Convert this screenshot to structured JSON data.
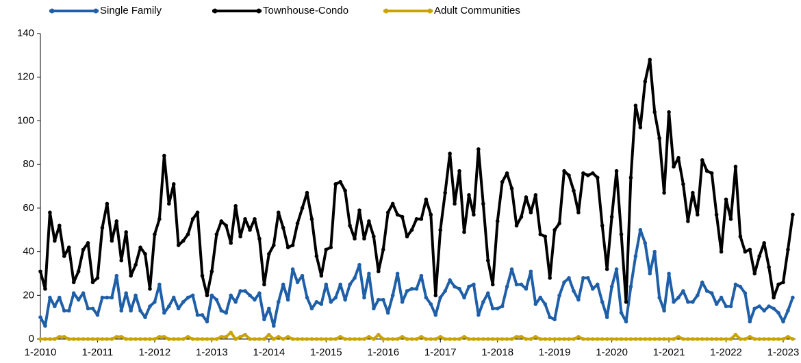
{
  "chart_data": {
    "type": "line",
    "categories": [
      "1-2010",
      null,
      null,
      null,
      null,
      null,
      null,
      null,
      null,
      null,
      null,
      null,
      "1-2011",
      null,
      null,
      null,
      null,
      null,
      null,
      null,
      null,
      null,
      null,
      null,
      "1-2012",
      null,
      null,
      null,
      null,
      null,
      null,
      null,
      null,
      null,
      null,
      null,
      "1-2013",
      null,
      null,
      null,
      null,
      null,
      null,
      null,
      null,
      null,
      null,
      null,
      "1-2014",
      null,
      null,
      null,
      null,
      null,
      null,
      null,
      null,
      null,
      null,
      null,
      "1-2015",
      null,
      null,
      null,
      null,
      null,
      null,
      null,
      null,
      null,
      null,
      null,
      "1-2016",
      null,
      null,
      null,
      null,
      null,
      null,
      null,
      null,
      null,
      null,
      null,
      "1-2017",
      null,
      null,
      null,
      null,
      null,
      null,
      null,
      null,
      null,
      null,
      null,
      "1-2018",
      null,
      null,
      null,
      null,
      null,
      null,
      null,
      null,
      null,
      null,
      null,
      "1-2019",
      null,
      null,
      null,
      null,
      null,
      null,
      null,
      null,
      null,
      null,
      null,
      "1-2020",
      null,
      null,
      null,
      null,
      null,
      null,
      null,
      null,
      null,
      null,
      null,
      "1-2021",
      null,
      null,
      null,
      null,
      null,
      null,
      null,
      null,
      null,
      null,
      null,
      "1-2022",
      null,
      null,
      null,
      null,
      null,
      null,
      null,
      null,
      null,
      null,
      null,
      "1-2023",
      null,
      null
    ],
    "series": [
      {
        "name": "Single Family",
        "color": "#1f5fa8",
        "values": [
          10,
          6,
          19,
          15,
          19,
          13,
          13,
          21,
          18,
          21,
          14,
          14,
          11,
          19,
          19,
          19,
          29,
          13,
          21,
          13,
          20,
          13,
          10,
          15,
          17,
          25,
          12,
          15,
          19,
          14,
          17,
          19,
          20,
          11,
          11,
          8,
          20,
          18,
          13,
          12,
          20,
          17,
          22,
          22,
          20,
          18,
          21,
          9,
          14,
          6,
          17,
          25,
          18,
          32,
          26,
          29,
          19,
          14,
          17,
          16,
          25,
          17,
          19,
          25,
          18,
          25,
          28,
          34,
          19,
          30,
          14,
          18,
          18,
          12,
          20,
          30,
          17,
          22,
          23,
          23,
          29,
          19,
          16,
          11,
          19,
          22,
          27,
          24,
          23,
          19,
          24,
          25,
          11,
          17,
          21,
          14,
          14,
          15,
          24,
          32,
          25,
          25,
          23,
          31,
          16,
          19,
          16,
          10,
          9,
          20,
          26,
          28,
          22,
          18,
          28,
          28,
          23,
          25,
          17,
          10,
          24,
          32,
          12,
          8,
          24,
          38,
          50,
          44,
          30,
          40,
          19,
          13,
          30,
          17,
          19,
          22,
          17,
          17,
          20,
          26,
          22,
          21,
          16,
          19,
          15,
          15,
          25,
          24,
          21,
          8,
          14,
          15,
          13,
          15,
          14,
          12,
          8,
          13,
          19
        ]
      },
      {
        "name": "Townhouse-Condo",
        "color": "#000000",
        "values": [
          31,
          23,
          58,
          45,
          52,
          38,
          42,
          26,
          31,
          41,
          44,
          26,
          28,
          51,
          62,
          45,
          54,
          36,
          49,
          29,
          34,
          42,
          39,
          23,
          48,
          55,
          84,
          62,
          71,
          43,
          45,
          48,
          55,
          58,
          29,
          20,
          31,
          48,
          54,
          52,
          44,
          61,
          47,
          55,
          50,
          55,
          46,
          25,
          39,
          43,
          58,
          51,
          42,
          43,
          53,
          60,
          67,
          55,
          38,
          29,
          41,
          42,
          71,
          72,
          68,
          52,
          46,
          59,
          46,
          54,
          47,
          31,
          41,
          58,
          62,
          57,
          56,
          47,
          50,
          55,
          55,
          64,
          57,
          20,
          50,
          67,
          85,
          62,
          77,
          49,
          66,
          57,
          87,
          62,
          36,
          25,
          54,
          72,
          76,
          69,
          52,
          56,
          65,
          58,
          66,
          48,
          47,
          28,
          50,
          53,
          77,
          75,
          68,
          58,
          76,
          75,
          76,
          74,
          52,
          32,
          56,
          77,
          48,
          17,
          74,
          107,
          97,
          118,
          128,
          104,
          92,
          67,
          104,
          79,
          83,
          71,
          54,
          67,
          57,
          82,
          77,
          76,
          57,
          40,
          64,
          55,
          79,
          47,
          40,
          41,
          30,
          38,
          44,
          33,
          19,
          25,
          26,
          41,
          57
        ]
      },
      {
        "name": "Adult Communities",
        "color": "#c9a400",
        "values": [
          0,
          0,
          0,
          0,
          1,
          1,
          0,
          0,
          0,
          0,
          0,
          0,
          0,
          0,
          0,
          0,
          1,
          1,
          0,
          0,
          0,
          0,
          0,
          0,
          0,
          1,
          1,
          0,
          0,
          0,
          0,
          1,
          0,
          0,
          0,
          0,
          0,
          0,
          1,
          1,
          3,
          0,
          1,
          2,
          0,
          0,
          0,
          0,
          2,
          0,
          1,
          0,
          1,
          0,
          0,
          0,
          0,
          0,
          0,
          0,
          0,
          0,
          0,
          1,
          0,
          0,
          0,
          0,
          0,
          1,
          0,
          2,
          0,
          0,
          0,
          0,
          1,
          0,
          0,
          0,
          1,
          0,
          0,
          0,
          1,
          0,
          0,
          0,
          0,
          1,
          0,
          0,
          0,
          0,
          0,
          0,
          0,
          0,
          0,
          0,
          1,
          1,
          0,
          0,
          1,
          0,
          0,
          0,
          0,
          0,
          0,
          0,
          0,
          1,
          0,
          0,
          0,
          0,
          0,
          0,
          0,
          0,
          0,
          0,
          0,
          0,
          0,
          0,
          0,
          0,
          0,
          0,
          0,
          0,
          1,
          0,
          0,
          0,
          0,
          0,
          0,
          0,
          0,
          0,
          0,
          0,
          2,
          0,
          0,
          1,
          0,
          0,
          0,
          0,
          0,
          0,
          0,
          1,
          0
        ]
      }
    ],
    "ylim": [
      0,
      140
    ],
    "yticks": [
      0,
      20,
      40,
      60,
      80,
      100,
      120,
      140
    ],
    "grid": false,
    "legend": "top"
  }
}
